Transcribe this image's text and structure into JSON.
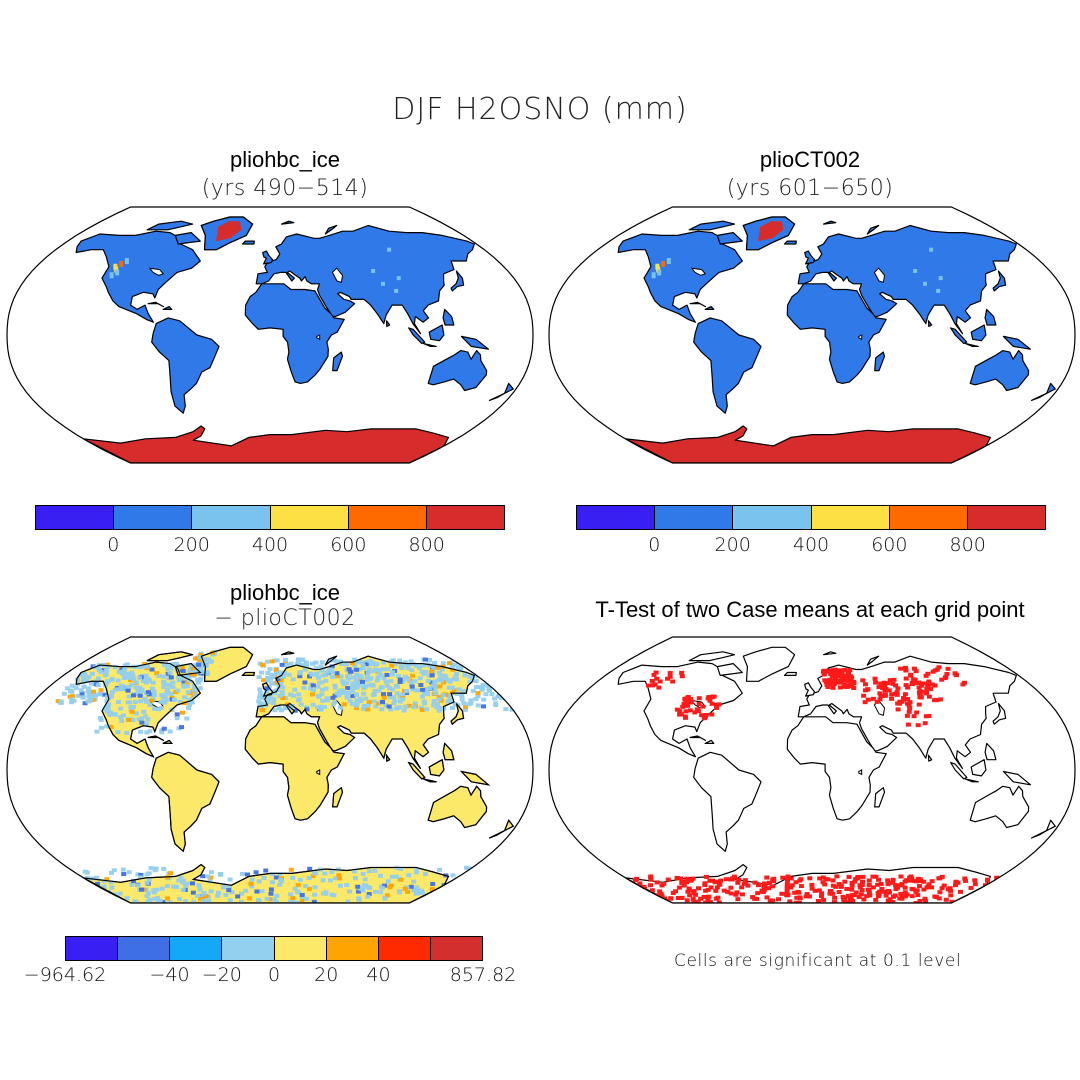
{
  "title": "DJF H2OSNO (mm)",
  "panels": [
    {
      "name": "pliohbc_ice",
      "subtitle": "(yrs 490−514)",
      "land_color": "#2f7ae8",
      "colorbar": {
        "colors": [
          "#3a1ff2",
          "#2f7ae8",
          "#79c3ee",
          "#fde044",
          "#ff6a00",
          "#d62c2c"
        ],
        "labels": [
          "0",
          "200",
          "400",
          "600",
          "800"
        ]
      }
    },
    {
      "name": "plioCT002",
      "subtitle": "(yrs 601−650)",
      "land_color": "#2f7ae8",
      "colorbar": {
        "colors": [
          "#3a1ff2",
          "#2f7ae8",
          "#79c3ee",
          "#fde044",
          "#ff6a00",
          "#d62c2c"
        ],
        "labels": [
          "0",
          "200",
          "400",
          "600",
          "800"
        ]
      }
    },
    {
      "name": "pliohbc_ice",
      "subtitle": "− plioCT002",
      "land_color": "#fce96a",
      "colorbar": {
        "colors": [
          "#3a1ff2",
          "#3f6fe4",
          "#14a9f7",
          "#93cfee",
          "#fce96a",
          "#ffa400",
          "#ff2a00",
          "#d42f2f"
        ],
        "labels": [
          "−964.62",
          "−40",
          "−20",
          "0",
          "20",
          "40",
          "857.82"
        ]
      }
    },
    {
      "name": "T-Test of two Case means at each grid point",
      "note": "Cells are significant at 0.1 level",
      "land_color": "#ffffff",
      "signif_color": "#ff1a1a"
    }
  ],
  "icons": {
    "map-projection": "robinson-world-outline"
  }
}
